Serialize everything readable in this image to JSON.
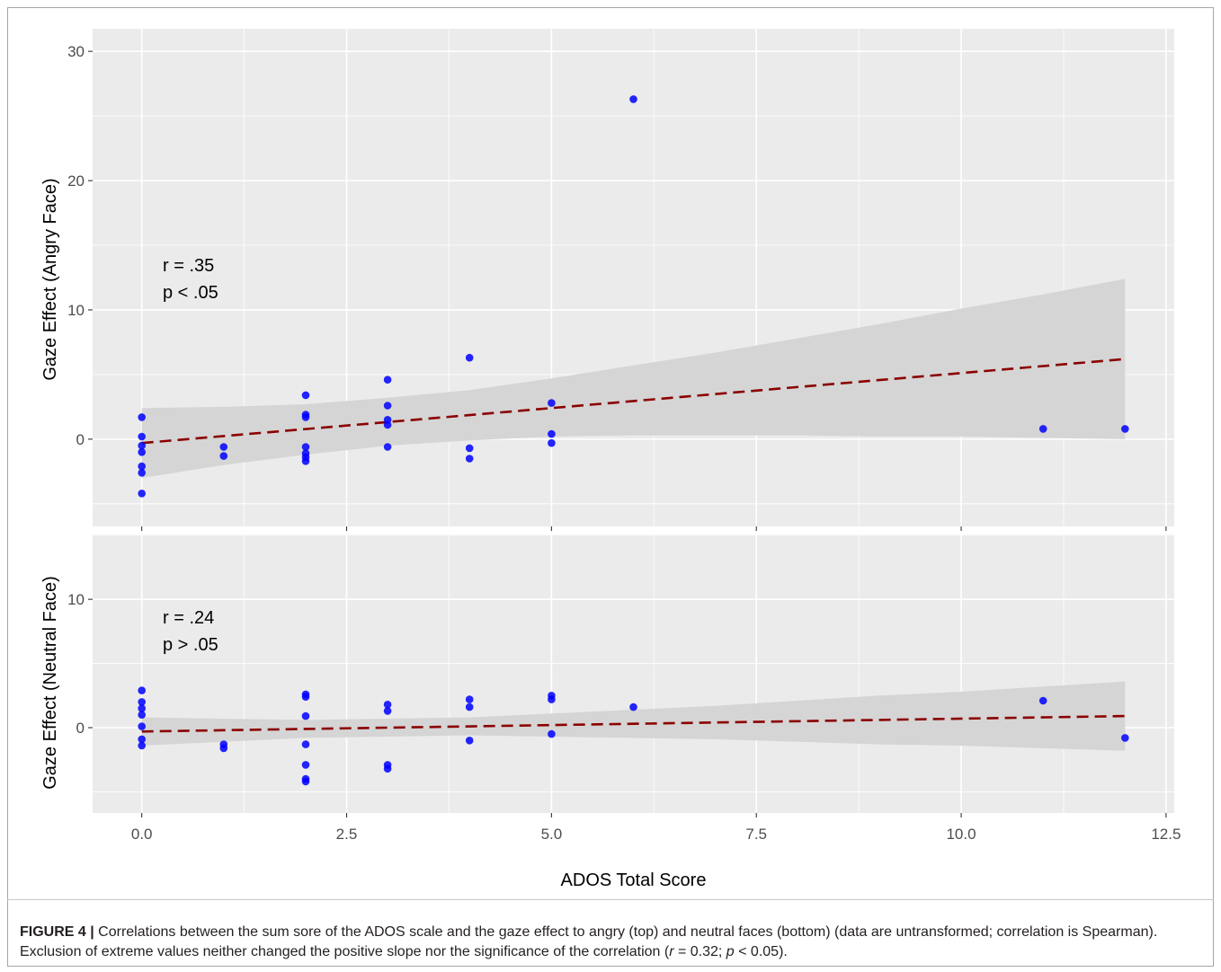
{
  "colors": {
    "panel_background": "#ebebeb",
    "grid": "#ffffff",
    "points": "#0000ff",
    "fit_line": "#8b0000",
    "ci_band": "#d5d5d5",
    "tick_label": "#4d4d4d",
    "axis_title": "#000000"
  },
  "chart_data": {
    "type": "scatter",
    "xlabel": "ADOS Total Score",
    "xticks": [
      "0.0",
      "2.5",
      "5.0",
      "7.5",
      "10.0",
      "12.5"
    ],
    "xlim": [
      -0.6,
      12.6
    ],
    "grid": true,
    "panels": [
      {
        "ylabel": "Gaze Effect (Angry Face)",
        "yticks": [
          "0",
          "10",
          "20",
          "30"
        ],
        "ylim": [
          -6.75,
          31.75
        ],
        "points": {
          "x": [
            0,
            0,
            0,
            0,
            0,
            0,
            0,
            1,
            1,
            2,
            2,
            2,
            2,
            2,
            2,
            2,
            3,
            3,
            3,
            3,
            3,
            4,
            4,
            4,
            5,
            5,
            5,
            6,
            11,
            12
          ],
          "y": [
            1.7,
            0.2,
            -0.5,
            -1.0,
            -2.1,
            -2.6,
            -4.2,
            -0.6,
            -1.3,
            3.4,
            1.9,
            1.7,
            -0.6,
            -1.1,
            -1.4,
            -1.7,
            4.6,
            2.6,
            1.5,
            1.1,
            -0.6,
            6.3,
            -0.7,
            -1.5,
            2.8,
            0.4,
            -0.3,
            26.3,
            0.8,
            0.8
          ]
        },
        "fit_line": {
          "x": [
            0,
            12
          ],
          "y": [
            -0.3,
            6.2
          ],
          "style": "dashed"
        },
        "ci_band": {
          "x": [
            0,
            1,
            2,
            3,
            4,
            5,
            6,
            7,
            8,
            9,
            10,
            11,
            12
          ],
          "lower": [
            -3.0,
            -2.0,
            -1.2,
            -0.5,
            -0.1,
            0.2,
            0.3,
            0.3,
            0.3,
            0.2,
            0.2,
            0.1,
            0.0
          ],
          "upper": [
            2.4,
            2.5,
            2.7,
            3.2,
            3.8,
            4.7,
            5.7,
            6.7,
            7.8,
            8.9,
            10.1,
            11.2,
            12.4
          ]
        },
        "annotations": [
          "r = .35",
          "p < .05"
        ]
      },
      {
        "ylabel": "Gaze Effect (Neutral Face)",
        "yticks": [
          "0",
          "10"
        ],
        "ylim": [
          -6.65,
          15.05
        ],
        "points": {
          "x": [
            0,
            0,
            0,
            0,
            0,
            0,
            0,
            1,
            1,
            2,
            2,
            2,
            2,
            2,
            2,
            2,
            3,
            3,
            3,
            3,
            4,
            4,
            4,
            5,
            5,
            5,
            6,
            11,
            12
          ],
          "y": [
            2.9,
            2.0,
            1.5,
            1.0,
            0.1,
            -0.9,
            -1.4,
            -1.3,
            -1.6,
            2.6,
            2.4,
            0.9,
            -1.3,
            -2.9,
            -4.0,
            -4.2,
            1.8,
            1.3,
            -2.9,
            -3.2,
            2.2,
            1.6,
            -1.0,
            2.5,
            2.2,
            -0.5,
            1.6,
            2.1,
            -0.8
          ]
        },
        "fit_line": {
          "x": [
            0,
            12
          ],
          "y": [
            -0.3,
            0.9
          ],
          "style": "dashed"
        },
        "ci_band": {
          "x": [
            0,
            1,
            2,
            3,
            4,
            5,
            6,
            7,
            8,
            9,
            10,
            11,
            12
          ],
          "lower": [
            -1.4,
            -1.1,
            -0.8,
            -0.7,
            -0.6,
            -0.7,
            -0.8,
            -0.9,
            -1.1,
            -1.3,
            -1.4,
            -1.6,
            -1.8
          ],
          "upper": [
            0.8,
            0.7,
            0.6,
            0.7,
            0.8,
            1.1,
            1.4,
            1.7,
            2.1,
            2.5,
            2.8,
            3.2,
            3.6
          ]
        },
        "annotations": [
          "r = .24",
          "p > .05"
        ]
      }
    ]
  },
  "caption": [
    "FIGURE 4 |",
    " Correlations between the sum sore of the ADOS scale and the gaze effect to angry (top) and neutral faces (bottom) (data are untransformed; correlation is Spearman). Exclusion of extreme values neither changed the positive slope nor the significance of the correlation (",
    "r",
    " = 0.32; ",
    "p",
    " < 0.05)."
  ]
}
